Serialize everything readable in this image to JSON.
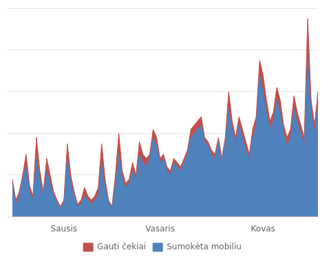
{
  "chart_data": {
    "type": "area",
    "categories": [
      null,
      null,
      null,
      null,
      null,
      null,
      null,
      null,
      null,
      null,
      null,
      null,
      null,
      null,
      null,
      "Sausis",
      null,
      null,
      null,
      null,
      null,
      null,
      null,
      null,
      null,
      null,
      null,
      null,
      null,
      null,
      null,
      null,
      null,
      null,
      null,
      null,
      null,
      null,
      null,
      null,
      null,
      null,
      null,
      "Vasaris",
      null,
      null,
      null,
      null,
      null,
      null,
      null,
      null,
      null,
      null,
      null,
      null,
      null,
      null,
      null,
      null,
      null,
      null,
      null,
      null,
      null,
      null,
      null,
      null,
      null,
      null,
      null,
      null,
      null,
      "Kovas",
      null,
      null,
      null,
      null,
      null,
      null,
      null,
      null,
      null,
      null,
      null,
      null,
      null,
      null,
      null,
      null
    ],
    "series": [
      {
        "name": "Gauti čekiai",
        "color": "#C0504D",
        "values": [
          18,
          8,
          12,
          20,
          30,
          15,
          10,
          38,
          22,
          12,
          28,
          20,
          12,
          8,
          5,
          8,
          35,
          20,
          12,
          6,
          8,
          14,
          10,
          8,
          10,
          14,
          35,
          18,
          8,
          5,
          20,
          40,
          22,
          16,
          18,
          26,
          20,
          36,
          30,
          28,
          30,
          42,
          38,
          28,
          30,
          24,
          22,
          28,
          26,
          24,
          28,
          32,
          42,
          44,
          46,
          48,
          38,
          36,
          32,
          30,
          38,
          28,
          38,
          60,
          46,
          38,
          48,
          42,
          36,
          30,
          42,
          48,
          75,
          68,
          56,
          46,
          50,
          62,
          56,
          44,
          38,
          42,
          58,
          50,
          44,
          38,
          95,
          56,
          44,
          60
        ]
      },
      {
        "name": "Sumokėta mobiliu",
        "color": "#4F81BD",
        "values": [
          16,
          6,
          10,
          18,
          24,
          12,
          8,
          28,
          18,
          10,
          22,
          16,
          10,
          7,
          4,
          7,
          28,
          16,
          10,
          5,
          6,
          10,
          8,
          6,
          8,
          10,
          26,
          14,
          7,
          4,
          16,
          30,
          18,
          14,
          16,
          22,
          18,
          30,
          26,
          24,
          28,
          38,
          34,
          26,
          28,
          22,
          20,
          26,
          24,
          22,
          26,
          30,
          38,
          40,
          42,
          44,
          36,
          34,
          30,
          28,
          36,
          26,
          36,
          52,
          42,
          36,
          44,
          38,
          32,
          28,
          38,
          44,
          68,
          60,
          50,
          42,
          46,
          56,
          50,
          40,
          34,
          38,
          52,
          45,
          40,
          34,
          76,
          50,
          40,
          55
        ]
      }
    ],
    "ylim": [
      0,
      100
    ],
    "yticks": [
      0,
      20,
      40,
      60,
      80,
      100
    ],
    "grid": true,
    "legend": "bottom",
    "tick_labels": "x"
  }
}
